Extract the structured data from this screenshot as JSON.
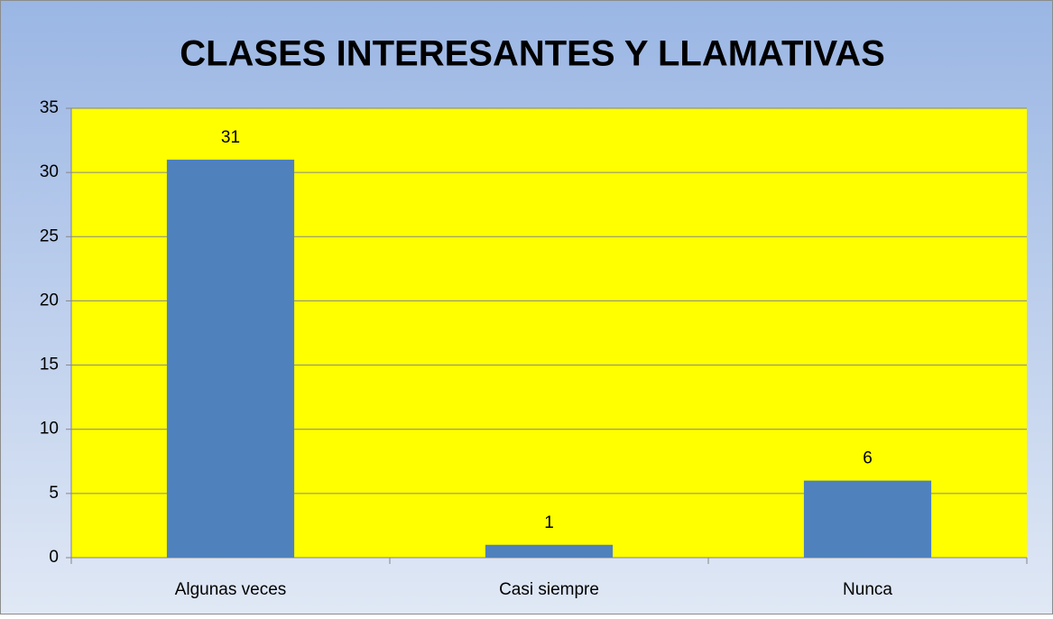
{
  "chart_data": {
    "type": "bar",
    "title": "CLASES INTERESANTES Y LLAMATIVAS",
    "categories": [
      "Algunas veces",
      "Casi siempre",
      "Nunca"
    ],
    "values": [
      31,
      1,
      6
    ],
    "color": "#4f81bd",
    "plot_background": "#ffff00",
    "ylim": [
      0,
      35
    ],
    "yticks": [
      0,
      5,
      10,
      15,
      20,
      25,
      30,
      35
    ],
    "grid": true
  }
}
